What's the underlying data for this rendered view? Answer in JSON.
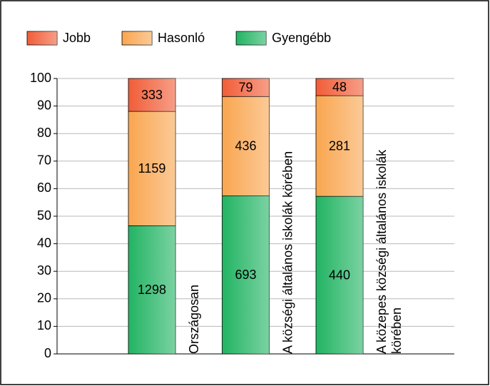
{
  "chart_data": {
    "type": "bar",
    "stacking": "percent",
    "categories": [
      "Országosan",
      "A községi általános iskolák körében",
      "A közepes községi általános iskolák körében"
    ],
    "series": [
      {
        "name": "Gyengébb",
        "color": "#22b463",
        "values": [
          1298,
          693,
          440
        ]
      },
      {
        "name": "Hasonló",
        "color": "#f9a650",
        "values": [
          1159,
          436,
          281
        ]
      },
      {
        "name": "Jobb",
        "color": "#f15d38",
        "values": [
          333,
          79,
          48
        ]
      }
    ],
    "legend_order": [
      2,
      1,
      0
    ],
    "ylim": [
      0,
      100
    ],
    "yticks": [
      0,
      10,
      20,
      30,
      40,
      50,
      60,
      70,
      80,
      90,
      100
    ],
    "grid": true
  }
}
